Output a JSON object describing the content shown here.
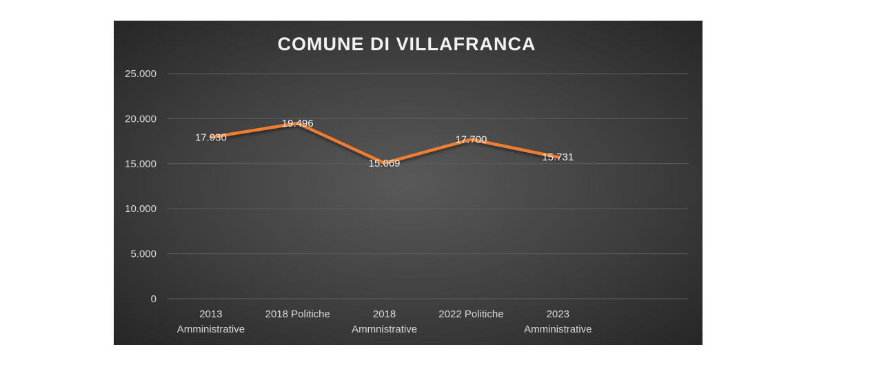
{
  "chart_data": {
    "type": "line",
    "title": "COMUNE DI VILLAFRANCA",
    "categories": [
      [
        "2013",
        "Amministrative"
      ],
      [
        "2018 Politiche"
      ],
      [
        "2018",
        "Ammnistrative"
      ],
      [
        "2022 Politiche"
      ],
      [
        "2023",
        "Amministrative"
      ]
    ],
    "values": [
      17930,
      19496,
      15069,
      17700,
      15731
    ],
    "data_labels": [
      "17.930",
      "19.496",
      "15.069",
      "17.700",
      "15.731"
    ],
    "y_ticks": [
      "0",
      "5.000",
      "10.000",
      "15.000",
      "20.000",
      "25.000"
    ],
    "ylim": [
      0,
      25000
    ],
    "grid": true,
    "legend": "none",
    "colors": {
      "line": "#ed7d31",
      "background": "#404040"
    }
  }
}
